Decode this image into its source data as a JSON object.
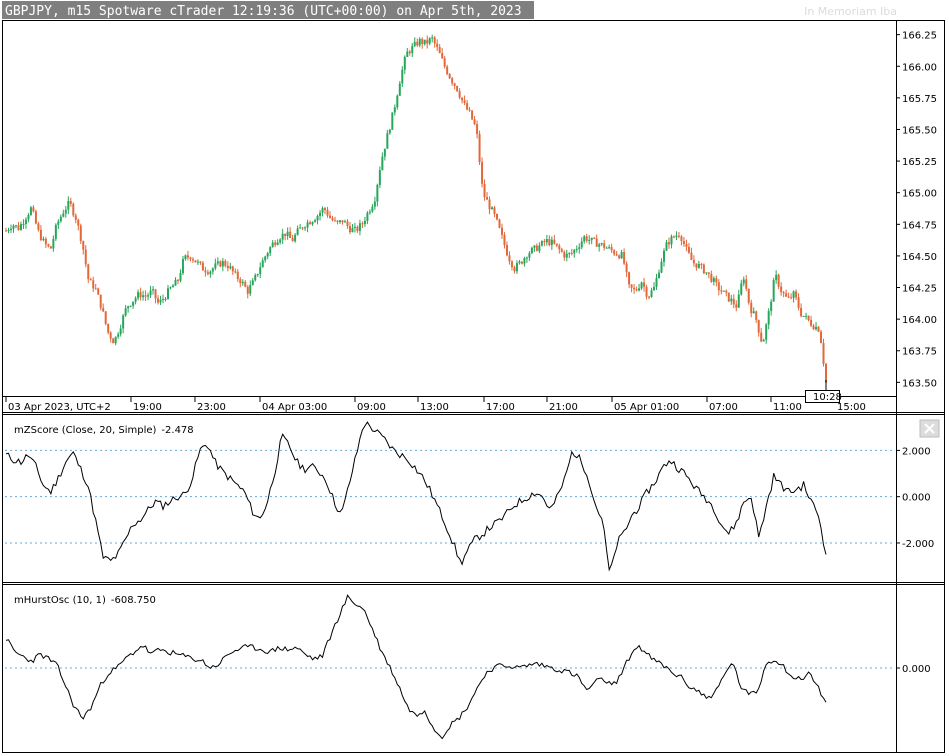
{
  "header": {
    "title": "GBPJPY, m15 Spotware cTrader 12:19:36 (UTC+00:00) on Apr 5th, 2023",
    "memoriam": "In Memoriam Iba"
  },
  "colors": {
    "bull": "#26a65b",
    "bear": "#e2683a",
    "grid_dotted": "#6aa9d8",
    "title_bg": "#7f7f7f"
  },
  "icons": {
    "close": "close-icon"
  },
  "chart_data": [
    {
      "type": "candlestick",
      "title": "GBPJPY, m15",
      "ylim": [
        163.4,
        166.35
      ],
      "y_ticks": [
        "166.25",
        "166.00",
        "165.75",
        "165.50",
        "165.25",
        "165.00",
        "164.75",
        "164.50",
        "164.25",
        "164.00",
        "163.75",
        "163.50"
      ],
      "x_tick_labels": [
        "03 Apr 2023, UTC+2",
        "19:00",
        "23:00",
        "04 Apr 03:00",
        "09:00",
        "13:00",
        "17:00",
        "21:00",
        "05 Apr 01:00",
        "07:00",
        "11:00",
        "15:00"
      ],
      "current_time_label": "10:28",
      "close_path": [
        164.7,
        164.75,
        164.72,
        164.8,
        164.88,
        164.7,
        164.6,
        164.55,
        164.75,
        164.85,
        164.92,
        164.8,
        164.6,
        164.3,
        164.25,
        164.1,
        163.9,
        163.82,
        163.95,
        164.1,
        164.15,
        164.2,
        164.18,
        164.22,
        164.12,
        164.18,
        164.25,
        164.3,
        164.48,
        164.5,
        164.45,
        164.4,
        164.38,
        164.42,
        164.45,
        164.42,
        164.35,
        164.3,
        164.22,
        164.3,
        164.42,
        164.52,
        164.6,
        164.65,
        164.68,
        164.62,
        164.7,
        164.75,
        164.78,
        164.82,
        164.88,
        164.8,
        164.75,
        164.78,
        164.72,
        164.7,
        164.75,
        164.85,
        164.95,
        165.25,
        165.45,
        165.65,
        165.9,
        166.1,
        166.15,
        166.2,
        166.18,
        166.22,
        166.12,
        166.0,
        165.9,
        165.82,
        165.7,
        165.62,
        165.5,
        165.0,
        164.9,
        164.8,
        164.65,
        164.5,
        164.4,
        164.45,
        164.52,
        164.55,
        164.58,
        164.62,
        164.6,
        164.55,
        164.5,
        164.52,
        164.58,
        164.65,
        164.62,
        164.6,
        164.58,
        164.55,
        164.52,
        164.5,
        164.25,
        164.22,
        164.3,
        164.18,
        164.25,
        164.45,
        164.6,
        164.65,
        164.68,
        164.55,
        164.45,
        164.42,
        164.38,
        164.32,
        164.25,
        164.2,
        164.15,
        164.1,
        164.35,
        164.1,
        164.0,
        163.8,
        164.05,
        164.35,
        164.22,
        164.15,
        164.2,
        164.05,
        164.0,
        163.95,
        163.92,
        163.5
      ],
      "volatility_scale": 0.06
    },
    {
      "type": "line",
      "title": "mZScore (Close, 20, Simple)",
      "last_value": "-2.478",
      "ylim": [
        -3.6,
        3.4
      ],
      "reference_lines": [
        2,
        0,
        -2
      ],
      "y_ticks": [
        "2.000",
        "0.000",
        "-2.000"
      ],
      "values": [
        1.8,
        1.6,
        1.5,
        1.8,
        1.3,
        0.5,
        0.2,
        0.8,
        1.5,
        1.9,
        1.2,
        0.5,
        -1.0,
        -2.6,
        -2.8,
        -2.5,
        -1.9,
        -1.2,
        -1.0,
        -0.6,
        -0.2,
        -0.4,
        -0.2,
        0.0,
        0.1,
        0.8,
        2.0,
        2.3,
        1.5,
        1.1,
        0.8,
        0.5,
        0.2,
        -0.6,
        -1.0,
        -0.3,
        1.0,
        2.6,
        2.2,
        1.5,
        1.2,
        1.3,
        1.1,
        0.7,
        -0.2,
        -0.8,
        0.5,
        1.8,
        3.2,
        3.0,
        2.7,
        2.4,
        2.0,
        1.8,
        1.6,
        1.2,
        0.8,
        0.2,
        -0.5,
        -1.2,
        -2.0,
        -2.9,
        -2.3,
        -1.8,
        -1.6,
        -1.3,
        -1.1,
        -0.8,
        -0.4,
        -0.2,
        0.0,
        0.2,
        0.0,
        -0.6,
        0.0,
        0.8,
        2.0,
        1.6,
        1.0,
        -0.3,
        -1.0,
        -3.4,
        -2.0,
        -1.5,
        -0.8,
        -0.4,
        0.2,
        0.6,
        1.2,
        1.6,
        1.3,
        1.0,
        0.6,
        0.2,
        -0.1,
        -0.5,
        -1.2,
        -1.6,
        -1.1,
        -0.2,
        0.0,
        -1.8,
        -0.4,
        0.9,
        0.5,
        0.2,
        0.3,
        0.5,
        -0.2,
        -0.8,
        -2.5
      ],
      "volatility": 0.35
    },
    {
      "type": "line",
      "title": "mHurstOsc (10, 1)",
      "last_value": "-608.750",
      "ylim": [
        -3.5,
        3.5
      ],
      "reference_lines": [
        0
      ],
      "y_ticks": [
        "0.000"
      ],
      "values": [
        1.3,
        0.7,
        0.5,
        0.3,
        0.6,
        0.4,
        0.1,
        -0.8,
        -1.7,
        -2.2,
        -1.7,
        -0.8,
        -0.2,
        0.0,
        0.4,
        0.7,
        1.0,
        0.6,
        0.8,
        0.7,
        0.6,
        0.5,
        0.4,
        0.3,
        0.0,
        0.2,
        0.6,
        0.8,
        0.9,
        0.9,
        0.8,
        0.7,
        0.9,
        0.8,
        0.9,
        0.6,
        0.4,
        0.5,
        1.4,
        2.3,
        3.1,
        2.8,
        2.5,
        1.6,
        0.7,
        0.0,
        -0.8,
        -1.7,
        -2.1,
        -1.8,
        -2.6,
        -3.0,
        -2.5,
        -2.2,
        -1.7,
        -1.0,
        -0.3,
        0.0,
        0.1,
        0.1,
        0.0,
        0.1,
        0.2,
        0.1,
        0.0,
        -0.1,
        -0.2,
        -0.4,
        -1.0,
        -0.6,
        -0.5,
        -0.8,
        -0.3,
        0.5,
        1.0,
        0.6,
        0.3,
        0.1,
        -0.2,
        -0.4,
        -0.8,
        -1.0,
        -1.3,
        -1.1,
        -0.4,
        0.3,
        -0.8,
        -1.2,
        -1.0,
        0.2,
        0.4,
        0.1,
        -0.4,
        -0.5,
        -0.2,
        -0.8,
        -1.5
      ],
      "volatility": 0.25
    }
  ]
}
